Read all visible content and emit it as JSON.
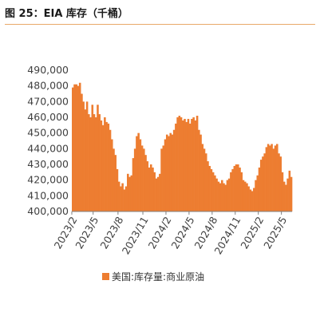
{
  "header": {
    "title": "图 25：EIA 库存（千桶）"
  },
  "colors": {
    "series": "#ed7d31",
    "axis": "#808080",
    "text": "#404040",
    "rule": "#e8a96a"
  },
  "chart_data": {
    "type": "area",
    "title": "图 25：EIA 库存（千桶）",
    "xlabel": "",
    "ylabel": "",
    "ylim": [
      400000,
      490000
    ],
    "yticks": [
      400000,
      410000,
      420000,
      430000,
      440000,
      450000,
      460000,
      470000,
      480000,
      490000
    ],
    "ytick_labels": [
      "400,000",
      "410,000",
      "420,000",
      "430,000",
      "440,000",
      "450,000",
      "460,000",
      "470,000",
      "480,000",
      "490,000"
    ],
    "xtick_labels": [
      "2023/2",
      "2023/5",
      "2023/8",
      "2023/11",
      "2024/2",
      "2024/5",
      "2024/8",
      "2024/11",
      "2025/2",
      "2025/5"
    ],
    "xtick_index": [
      0,
      12,
      26,
      40,
      53,
      66,
      79,
      92,
      105,
      118
    ],
    "legend": [
      "美国:库存量:商业原油"
    ],
    "legend_position": "bottom",
    "grid": false,
    "series": [
      {
        "name": "美国:库存量:商业原油",
        "values": [
          479000,
          481000,
          481000,
          480000,
          482000,
          475000,
          470000,
          465000,
          470000,
          462000,
          460000,
          468000,
          462000,
          460000,
          468000,
          462000,
          458000,
          455000,
          460000,
          457000,
          456000,
          452000,
          446000,
          440000,
          436000,
          427000,
          419000,
          416000,
          418000,
          414000,
          416000,
          424000,
          422000,
          423000,
          434000,
          440000,
          448000,
          450000,
          446000,
          442000,
          440000,
          436000,
          432000,
          428000,
          430000,
          428000,
          425000,
          421000,
          422000,
          424000,
          440000,
          442000,
          446000,
          449000,
          448000,
          450000,
          449000,
          452000,
          456000,
          460000,
          461000,
          460000,
          458000,
          459000,
          457000,
          459000,
          456000,
          459000,
          460000,
          458000,
          461000,
          452000,
          449000,
          443000,
          440000,
          437000,
          432000,
          429000,
          427000,
          425000,
          423000,
          421000,
          419000,
          418000,
          420000,
          418000,
          417000,
          420000,
          421000,
          425000,
          427000,
          429000,
          430000,
          430000,
          428000,
          425000,
          420000,
          419000,
          418000,
          416000,
          414000,
          413000,
          415000,
          420000,
          423000,
          428000,
          433000,
          435000,
          437000,
          441000,
          443000,
          442000,
          443000,
          440000,
          442000,
          443000,
          437000,
          435000,
          425000,
          419000,
          417000,
          421000,
          426000,
          422000
        ]
      }
    ]
  }
}
